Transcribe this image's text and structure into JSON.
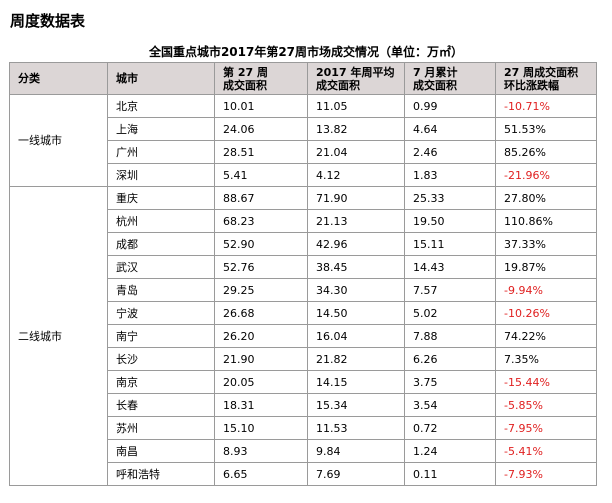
{
  "page_heading": "周度数据表",
  "table_title": "全国重点城市2017年第27周市场成交情况（单位：万㎡）",
  "headers": {
    "category": "分类",
    "city": "城市",
    "week_line1": "第 27 周",
    "week_line2": "成交面积",
    "avg_line1": "2017 年周平均",
    "avg_line2": "成交面积",
    "month_line1": "7 月累计",
    "month_line2": "成交面积",
    "change_line1": "27 周成交面积",
    "change_line2": "环比涨跌幅"
  },
  "colors": {
    "header_bg": "#dcd6d6",
    "negative": "#e02020",
    "border": "#9a9a9a"
  },
  "groups": [
    {
      "category": "一线城市",
      "rows": [
        {
          "city": "北京",
          "week": "10.01",
          "avg": "11.05",
          "month": "0.99",
          "change": "-10.71%",
          "neg": true
        },
        {
          "city": "上海",
          "week": "24.06",
          "avg": "13.82",
          "month": "4.64",
          "change": "51.53%",
          "neg": false
        },
        {
          "city": "广州",
          "week": "28.51",
          "avg": "21.04",
          "month": "2.46",
          "change": "85.26%",
          "neg": false
        },
        {
          "city": "深圳",
          "week": "5.41",
          "avg": "4.12",
          "month": "1.83",
          "change": "-21.96%",
          "neg": true
        }
      ]
    },
    {
      "category": "二线城市",
      "rows": [
        {
          "city": "重庆",
          "week": "88.67",
          "avg": "71.90",
          "month": "25.33",
          "change": "27.80%",
          "neg": false
        },
        {
          "city": "杭州",
          "week": "68.23",
          "avg": "21.13",
          "month": "19.50",
          "change": "110.86%",
          "neg": false
        },
        {
          "city": "成都",
          "week": "52.90",
          "avg": "42.96",
          "month": "15.11",
          "change": "37.33%",
          "neg": false
        },
        {
          "city": "武汉",
          "week": "52.76",
          "avg": "38.45",
          "month": "14.43",
          "change": "19.87%",
          "neg": false
        },
        {
          "city": "青岛",
          "week": "29.25",
          "avg": "34.30",
          "month": "7.57",
          "change": "-9.94%",
          "neg": true
        },
        {
          "city": "宁波",
          "week": "26.68",
          "avg": "14.50",
          "month": "5.02",
          "change": "-10.26%",
          "neg": true
        },
        {
          "city": "南宁",
          "week": "26.20",
          "avg": "16.04",
          "month": "7.88",
          "change": "74.22%",
          "neg": false
        },
        {
          "city": "长沙",
          "week": "21.90",
          "avg": "21.82",
          "month": "6.26",
          "change": "7.35%",
          "neg": false
        },
        {
          "city": "南京",
          "week": "20.05",
          "avg": "14.15",
          "month": "3.75",
          "change": "-15.44%",
          "neg": true
        },
        {
          "city": "长春",
          "week": "18.31",
          "avg": "15.34",
          "month": "3.54",
          "change": "-5.85%",
          "neg": true
        },
        {
          "city": "苏州",
          "week": "15.10",
          "avg": "11.53",
          "month": "0.72",
          "change": "-7.95%",
          "neg": true
        },
        {
          "city": "南昌",
          "week": "8.93",
          "avg": "9.84",
          "month": "1.24",
          "change": "-5.41%",
          "neg": true
        },
        {
          "city": "呼和浩特",
          "week": "6.65",
          "avg": "7.69",
          "month": "0.11",
          "change": "-7.93%",
          "neg": true
        }
      ]
    }
  ]
}
